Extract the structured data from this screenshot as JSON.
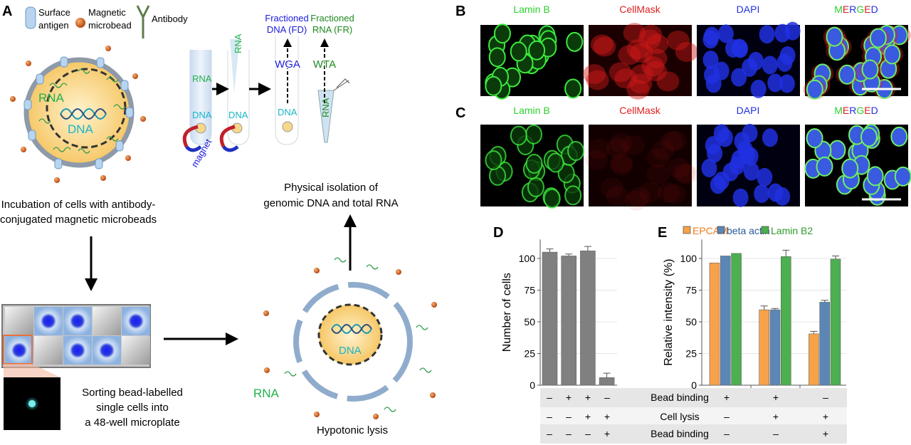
{
  "panelA": {
    "letter": "A",
    "legend": {
      "surface_antigen": "Surface antigen",
      "surface_antigen_l1": "Surface",
      "surface_antigen_l2": "antigen",
      "microbead_l1": "Magnetic",
      "microbead_l2": "microbead",
      "antibody": "Antibody"
    },
    "cell_rna": "RNA",
    "cell_dna": "DNA",
    "incubation_l1": "Incubation of cells with antibody-",
    "incubation_l2": "conjugated magnetic microbeads",
    "sorting_l1": "Sorting bead-labelled",
    "sorting_l2": "single cells into",
    "sorting_l3": "a 48-well microplate",
    "lysis_caption": "Hypotonic lysis",
    "lysed_dna": "DNA",
    "lysed_rna": "RNA",
    "isolation_l1": "Physical isolation of",
    "isolation_l2": "genomic DNA and total RNA",
    "tube_rna": "RNA",
    "tube_dna": "DNA",
    "magnet": "magnet",
    "fd_l1": "Fractioned",
    "fd_l2": "DNA (FD)",
    "fr_l1": "Fractioned",
    "fr_l2": "RNA (FR)",
    "wga": "WGA",
    "wta": "WTA",
    "colors": {
      "rna": "#22b14c",
      "dna": "#19b5c8",
      "fd": "#1a1adc",
      "fr": "#1d8a1d"
    }
  },
  "panelB": {
    "letter": "B",
    "labels": [
      "Lamin B",
      "CellMask",
      "DAPI",
      "MERGED"
    ]
  },
  "panelC": {
    "letter": "C",
    "labels": [
      "Lamin B",
      "CellMask",
      "DAPI",
      "MERGED"
    ]
  },
  "merged_letters": [
    "M",
    "E",
    "R",
    "G",
    "E",
    "D"
  ],
  "chart_data": [
    {
      "panel": "D",
      "type": "bar",
      "ylabel": "Number of cells",
      "ylim": [
        0,
        115
      ],
      "yticks": [
        0,
        25,
        50,
        75,
        100
      ],
      "categories": [
        "1",
        "2",
        "3",
        "4"
      ],
      "values": [
        105,
        102,
        106,
        6
      ],
      "errors": [
        2.5,
        1.5,
        3.5,
        3.5
      ],
      "color": "#808080",
      "grid": true
    },
    {
      "panel": "E",
      "type": "bar",
      "ylabel": "Relative intensity (%)",
      "ylim": [
        0,
        115
      ],
      "yticks": [
        0,
        25,
        50,
        75,
        100
      ],
      "legend_position": "top",
      "categories": [
        "1",
        "2",
        "3"
      ],
      "series": [
        {
          "name": "EPCAM",
          "values": [
            96.5,
            59.5,
            40.5
          ],
          "errors": [
            0,
            3,
            2
          ],
          "color": "#f7a24a"
        },
        {
          "name": "beta actin",
          "values": [
            102,
            59.5,
            65.5
          ],
          "errors": [
            0,
            1,
            1.5
          ],
          "color": "#5b86b5"
        },
        {
          "name": "Lamin B2",
          "values": [
            104,
            101.5,
            99.5
          ],
          "errors": [
            0,
            5,
            2.5
          ],
          "color": "#4caf50"
        }
      ],
      "legend_text_colors": [
        "#f07c1e",
        "#2a5a9a",
        "#2e9a2e"
      ],
      "grid": true
    }
  ],
  "conditions_table": {
    "rows": [
      {
        "label": "Bead binding",
        "d": [
          "–",
          "+",
          "+",
          "–"
        ],
        "e": [
          "+",
          "+",
          "–"
        ]
      },
      {
        "label": "Cell lysis",
        "d": [
          "–",
          "–",
          "+",
          "+"
        ],
        "e": [
          "–",
          "+",
          "+"
        ]
      },
      {
        "label": "Bead binding",
        "d": [
          "–",
          "–",
          "–",
          "+"
        ],
        "e": [
          "–",
          "–",
          "+"
        ]
      }
    ]
  }
}
